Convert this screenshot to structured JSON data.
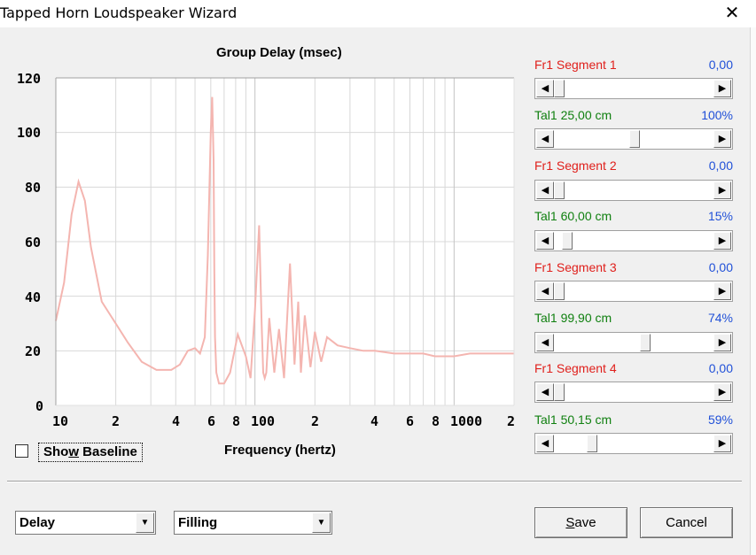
{
  "window": {
    "title": "Tapped Horn Loudspeaker Wizard",
    "close_glyph": "✕"
  },
  "chart": {
    "title": "Group Delay (msec)",
    "xlabel": "Frequency (hertz)"
  },
  "chart_data": {
    "type": "line",
    "title": "Group Delay (msec)",
    "xlabel": "Frequency (hertz)",
    "ylabel": "",
    "x_scale": "log",
    "xlim": [
      10,
      2000
    ],
    "ylim": [
      0,
      120
    ],
    "y_ticks": [
      "0",
      "20",
      "40",
      "60",
      "80",
      "100",
      "120"
    ],
    "x_ticks": [
      "10",
      "2",
      "4",
      "6",
      "8",
      "100",
      "2",
      "4",
      "6",
      "8",
      "1000",
      "2"
    ],
    "grid": true,
    "line_color": "#f4b5b0",
    "series": [
      {
        "x": [
          10,
          11,
          12,
          13,
          14,
          15,
          17,
          20,
          23,
          27,
          32,
          38,
          42,
          46,
          50,
          53,
          56,
          58,
          60,
          61,
          62,
          62.5,
          63,
          64,
          66,
          70,
          75,
          82,
          90,
          95,
          100,
          105,
          108,
          110,
          112,
          114,
          118,
          125,
          132,
          140,
          150,
          158,
          165,
          170,
          178,
          190,
          200,
          215,
          230,
          260,
          300,
          350,
          400,
          500,
          600,
          700,
          800,
          1000,
          1200,
          1500,
          2000
        ],
        "y": [
          31,
          45,
          70,
          82,
          75,
          58,
          38,
          30,
          23,
          16,
          13,
          13,
          15,
          20,
          21,
          19,
          25,
          55,
          100,
          113,
          90,
          50,
          25,
          12,
          8,
          8,
          12,
          26,
          18,
          10,
          35,
          66,
          30,
          12,
          10,
          12,
          32,
          12,
          28,
          10,
          52,
          15,
          38,
          12,
          33,
          14,
          27,
          16,
          25,
          22,
          21,
          20,
          20,
          19,
          19,
          19,
          18,
          18,
          19,
          19,
          19
        ]
      }
    ]
  },
  "show_baseline": {
    "label": "Show Baseline",
    "checked": false
  },
  "controls": [
    {
      "kind": "fr",
      "label": "Fr1  Segment 1",
      "value": "0,00",
      "fraction": 0.0
    },
    {
      "kind": "tal",
      "label": "Tal1  25,00 cm",
      "value": "100%",
      "fraction": 0.5
    },
    {
      "kind": "fr",
      "label": "Fr1  Segment 2",
      "value": "0,00",
      "fraction": 0.0
    },
    {
      "kind": "tal",
      "label": "Tal1  60,00 cm",
      "value": "15%",
      "fraction": 0.05
    },
    {
      "kind": "fr",
      "label": "Fr1  Segment 3",
      "value": "0,00",
      "fraction": 0.0
    },
    {
      "kind": "tal",
      "label": "Tal1  99,90 cm",
      "value": "74%",
      "fraction": 0.57
    },
    {
      "kind": "fr",
      "label": "Fr1  Segment 4",
      "value": "0,00",
      "fraction": 0.0
    },
    {
      "kind": "tal",
      "label": "Tal1  50,15 cm",
      "value": "59%",
      "fraction": 0.22
    }
  ],
  "scroll_glyphs": {
    "left": "◀",
    "right": "▶"
  },
  "dropdowns": {
    "mode": "Delay",
    "fill": "Filling",
    "arrow": "▼"
  },
  "buttons": {
    "save": "Save",
    "cancel": "Cancel"
  }
}
